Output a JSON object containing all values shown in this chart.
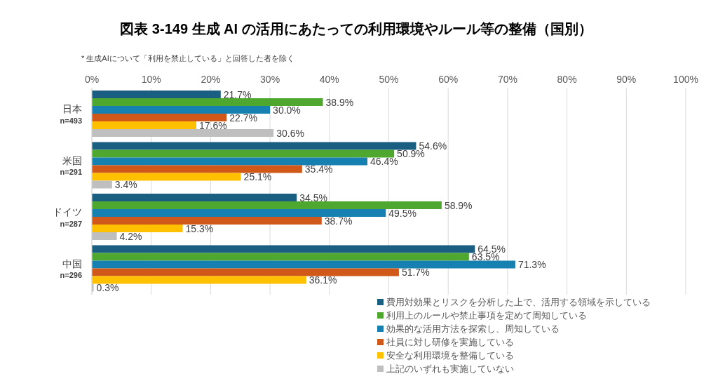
{
  "chart_data": {
    "type": "bar",
    "orientation": "horizontal",
    "title": "図表 3-149  生成 AI の活用にあたっての利用環境やルール等の整備（国別）",
    "annotations": [
      "* 生成AIについて「利用を禁止している」と回答した者を除く"
    ],
    "categories": [
      "日本\nn=493",
      "米国\nn=291",
      "ドイツ\nn=287",
      "中国\nn=296"
    ],
    "series": [
      {
        "name": "費用対効果とリスクを分析した上で、活用する領域を示している",
        "color": "#1a5f82",
        "values": [
          21.7,
          54.6,
          34.5,
          64.5
        ],
        "value_labels": [
          "21.7%",
          "54.6%",
          "34.5%",
          "64.5%"
        ]
      },
      {
        "name": "利用上のルールや禁止事項を定めて周知している",
        "color": "#4ea72e",
        "values": [
          38.9,
          50.9,
          58.9,
          63.5
        ],
        "value_labels": [
          "38.9%",
          "50.9%",
          "58.9%",
          "63.5%"
        ]
      },
      {
        "name": "効果的な活用方法を探索し、周知している",
        "color": "#1680b0",
        "values": [
          30.0,
          46.4,
          49.5,
          71.3
        ],
        "value_labels": [
          "30.0%",
          "46.4%",
          "49.5%",
          "71.3%"
        ]
      },
      {
        "name": "社員に対し研修を実施している",
        "color": "#d05818",
        "values": [
          22.7,
          35.4,
          38.7,
          51.7
        ],
        "value_labels": [
          "22.7%",
          "35.4%",
          "38.7%",
          "51.7%"
        ]
      },
      {
        "name": "安全な利用環境を整備している",
        "color": "#ffc000",
        "values": [
          17.6,
          25.1,
          15.3,
          36.1
        ],
        "value_labels": [
          "17.6%",
          "25.1%",
          "15.3%",
          "36.1%"
        ]
      },
      {
        "name": "上記のいずれも実施していない",
        "color": "#bfbfbf",
        "values": [
          30.6,
          3.4,
          4.2,
          0.3
        ],
        "value_labels": [
          "30.6%",
          "3.4%",
          "4.2%",
          "0.3%"
        ]
      }
    ],
    "xlim": [
      0,
      100
    ],
    "xticks": [
      {
        "value": 0,
        "label": "0%"
      },
      {
        "value": 10,
        "label": "10%"
      },
      {
        "value": 20,
        "label": "20%"
      },
      {
        "value": 30,
        "label": "30%"
      },
      {
        "value": 40,
        "label": "40%"
      },
      {
        "value": 50,
        "label": "50%"
      },
      {
        "value": 60,
        "label": "60%"
      },
      {
        "value": 70,
        "label": "70%"
      },
      {
        "value": 80,
        "label": "80%"
      },
      {
        "value": 90,
        "label": "90%"
      },
      {
        "value": 100,
        "label": "100%"
      }
    ],
    "grid": "x",
    "legend": "bottom right"
  }
}
